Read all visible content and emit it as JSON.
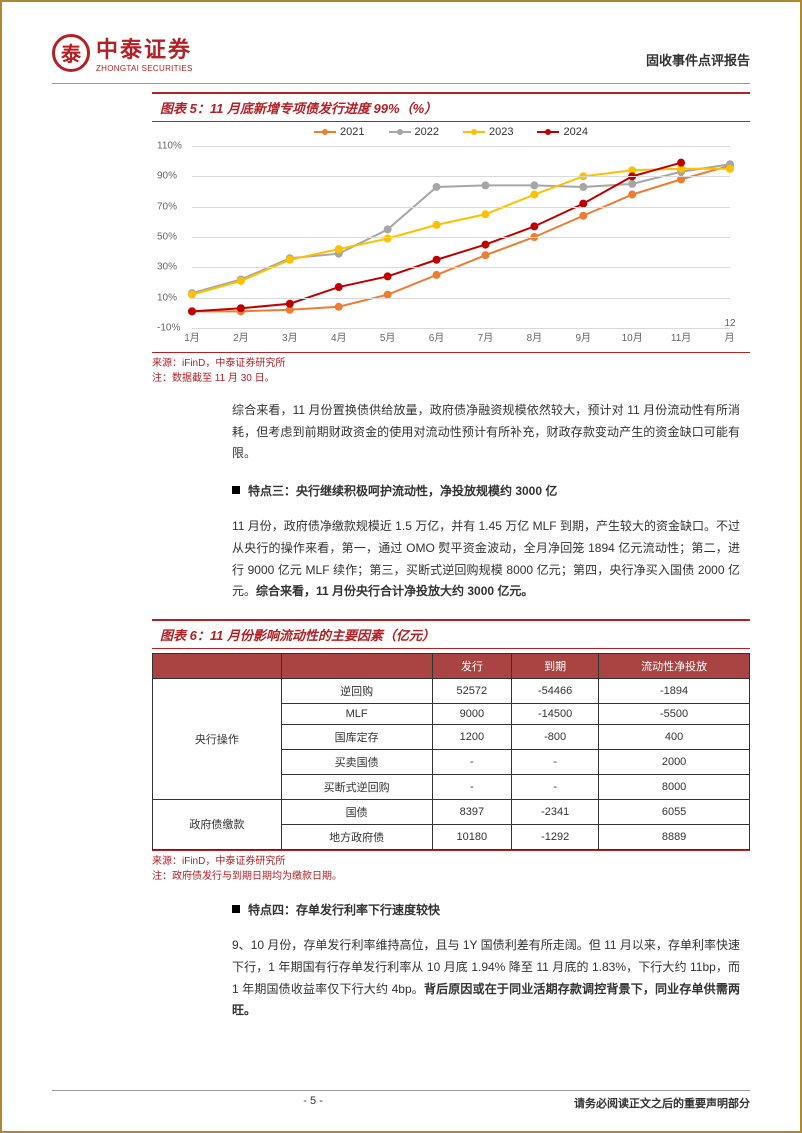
{
  "header": {
    "logo_cn": "中泰证券",
    "logo_en": "ZHONGTAI SECURITIES",
    "report_type": "固收事件点评报告"
  },
  "chart5": {
    "title": "图表 5：11 月底新增专项债发行进度 99%（%）",
    "type": "line",
    "xlabels": [
      "1月",
      "2月",
      "3月",
      "4月",
      "5月",
      "6月",
      "7月",
      "8月",
      "9月",
      "10月",
      "11月",
      "12月"
    ],
    "ylabels": [
      "-10%",
      "10%",
      "30%",
      "50%",
      "70%",
      "90%",
      "110%"
    ],
    "ylim": [
      -10,
      110
    ],
    "grid_color": "#d9d9d9",
    "background_color": "#ffffff",
    "series": [
      {
        "name": "2021",
        "color": "#ed7d31",
        "values": [
          1,
          1,
          2,
          4,
          12,
          25,
          38,
          50,
          64,
          78,
          88,
          97
        ]
      },
      {
        "name": "2022",
        "color": "#a6a6a6",
        "values": [
          13,
          22,
          36,
          39,
          55,
          83,
          84,
          84,
          83,
          85,
          93,
          98
        ]
      },
      {
        "name": "2023",
        "color": "#ffc000",
        "values": [
          12,
          21,
          35,
          42,
          49,
          58,
          65,
          78,
          90,
          94,
          95,
          95
        ]
      },
      {
        "name": "2024",
        "color": "#c00000",
        "values": [
          1,
          3,
          6,
          17,
          24,
          35,
          45,
          57,
          72,
          90,
          99,
          null
        ]
      }
    ],
    "marker_size": 4,
    "line_width": 2,
    "source": "来源：iFinD，中泰证券研究所",
    "note": "注：数据截至 11 月 30 日。"
  },
  "para1": "综合来看，11 月份置换债供给放量，政府债净融资规模依然较大，预计对 11 月份流动性有所消耗，但考虑到前期财政资金的使用对流动性预计有所补充，财政存款变动产生的资金缺口可能有限。",
  "point3": {
    "title": "特点三：央行继续积极呵护流动性，净投放规模约 3000 亿",
    "body_plain": "11 月份，政府债净缴款规模近 1.5 万亿，并有 1.45 万亿 MLF 到期，产生较大的资金缺口。不过从央行的操作来看，第一，通过 OMO 熨平资金波动，全月净回笼 1894 亿元流动性；第二，进行 9000 亿元 MLF 续作；第三，买断式逆回购规模 8000 亿元；第四，央行净买入国债 2000 亿元。",
    "body_bold": "综合来看，11 月份央行合计净投放大约 3000 亿元。"
  },
  "chart6": {
    "title": "图表 6：11 月份影响流动性的主要因素（亿元）",
    "columns": [
      "",
      "",
      "发行",
      "到期",
      "流动性净投放"
    ],
    "header_bg": "#a94442",
    "header_color": "#ffffff",
    "border_color": "#333333",
    "groups": [
      {
        "name": "央行操作",
        "rows": [
          [
            "逆回购",
            "52572",
            "-54466",
            "-1894"
          ],
          [
            "MLF",
            "9000",
            "-14500",
            "-5500"
          ],
          [
            "国库定存",
            "1200",
            "-800",
            "400"
          ],
          [
            "买卖国债",
            "-",
            "-",
            "2000"
          ],
          [
            "买断式逆回购",
            "-",
            "-",
            "8000"
          ]
        ]
      },
      {
        "name": "政府债缴款",
        "rows": [
          [
            "国债",
            "8397",
            "-2341",
            "6055"
          ],
          [
            "地方政府债",
            "10180",
            "-1292",
            "8889"
          ]
        ]
      }
    ],
    "source": "来源：iFinD，中泰证券研究所",
    "note": "注：政府债发行与到期日期均为缴款日期。"
  },
  "point4": {
    "title": "特点四：存单发行利率下行速度较快",
    "body_plain": "9、10 月份，存单发行利率维持高位，且与 1Y 国债利差有所走阔。但 11 月以来，存单利率快速下行，1 年期国有行存单发行利率从 10 月底 1.94% 降至 11 月底的 1.83%，下行大约 11bp，而 1 年期国债收益率仅下行大约 4bp。",
    "body_bold": "背后原因或在于同业活期存款调控背景下，同业存单供需两旺。"
  },
  "footer": {
    "page": "- 5 -",
    "disclaimer": "请务必阅读正文之后的重要声明部分"
  }
}
